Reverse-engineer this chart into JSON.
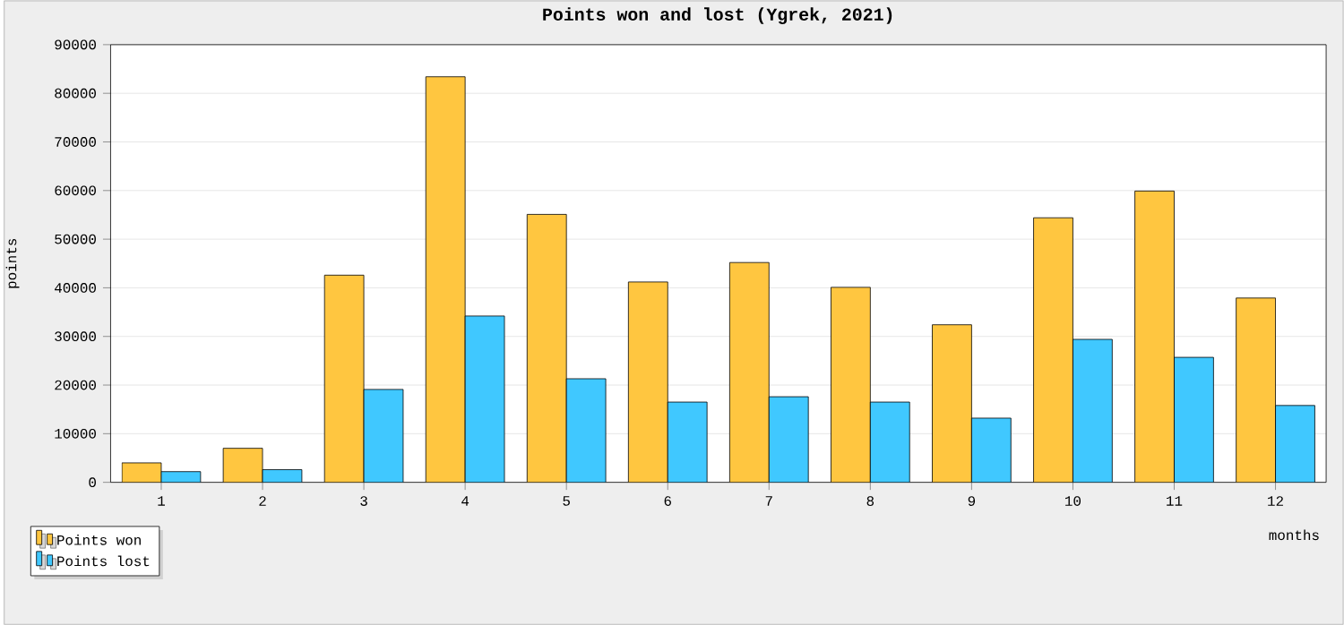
{
  "chart_data": {
    "type": "bar",
    "title": "Points won and lost (Ygrek, 2021)",
    "xlabel": "months",
    "ylabel": "points",
    "categories": [
      "1",
      "2",
      "3",
      "4",
      "5",
      "6",
      "7",
      "8",
      "9",
      "10",
      "11",
      "12"
    ],
    "series": [
      {
        "name": "Points won",
        "color": "#ffc640",
        "values": [
          4000,
          7000,
          42600,
          83400,
          55100,
          41200,
          45200,
          40100,
          32400,
          54400,
          59900,
          37900
        ]
      },
      {
        "name": "Points lost",
        "color": "#40c8ff",
        "values": [
          2200,
          2600,
          19100,
          34200,
          21300,
          16500,
          17600,
          16500,
          13200,
          29400,
          25700,
          15800
        ]
      }
    ],
    "ylim": [
      0,
      90000
    ],
    "yticks": [
      0,
      10000,
      20000,
      30000,
      40000,
      50000,
      60000,
      70000,
      80000,
      90000
    ],
    "grid": "y",
    "legend": "bottom left"
  }
}
